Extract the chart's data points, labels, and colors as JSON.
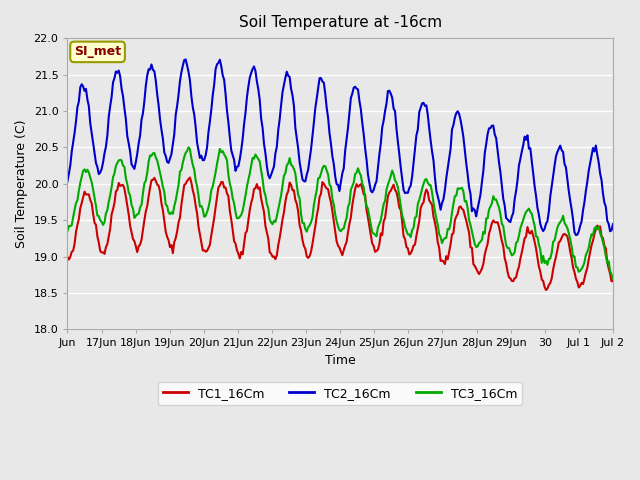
{
  "title": "Soil Temperature at -16cm",
  "xlabel": "Time",
  "ylabel": "Soil Temperature (C)",
  "ylim": [
    18.0,
    22.0
  ],
  "yticks": [
    18.0,
    18.5,
    19.0,
    19.5,
    20.0,
    20.5,
    21.0,
    21.5,
    22.0
  ],
  "bg_color": "#e8e8e8",
  "plot_bg_color": "#e8e8e8",
  "annotation_text": "SI_met",
  "annotation_bg": "#ffffcc",
  "annotation_border": "#999900",
  "annotation_text_color": "#880000",
  "series": {
    "TC1_16Cm": {
      "color": "#cc0000",
      "linewidth": 1.5
    },
    "TC2_16Cm": {
      "color": "#0000cc",
      "linewidth": 1.5
    },
    "TC3_16Cm": {
      "color": "#00aa00",
      "linewidth": 1.5
    }
  },
  "xtick_positions": [
    0,
    1,
    2,
    3,
    4,
    5,
    6,
    7,
    8,
    9,
    10,
    11,
    12,
    13,
    14,
    15,
    16
  ],
  "xtick_labels": [
    "Jun",
    "17Jun",
    "18Jun",
    "19Jun",
    "20Jun",
    "21Jun",
    "22Jun",
    "23Jun",
    "24Jun",
    "25Jun",
    "26Jun",
    "27Jun",
    "28Jun",
    "29Jun",
    "30",
    "Jul 1",
    "Jul 2"
  ],
  "num_days": 16,
  "pts_per_day": 24
}
